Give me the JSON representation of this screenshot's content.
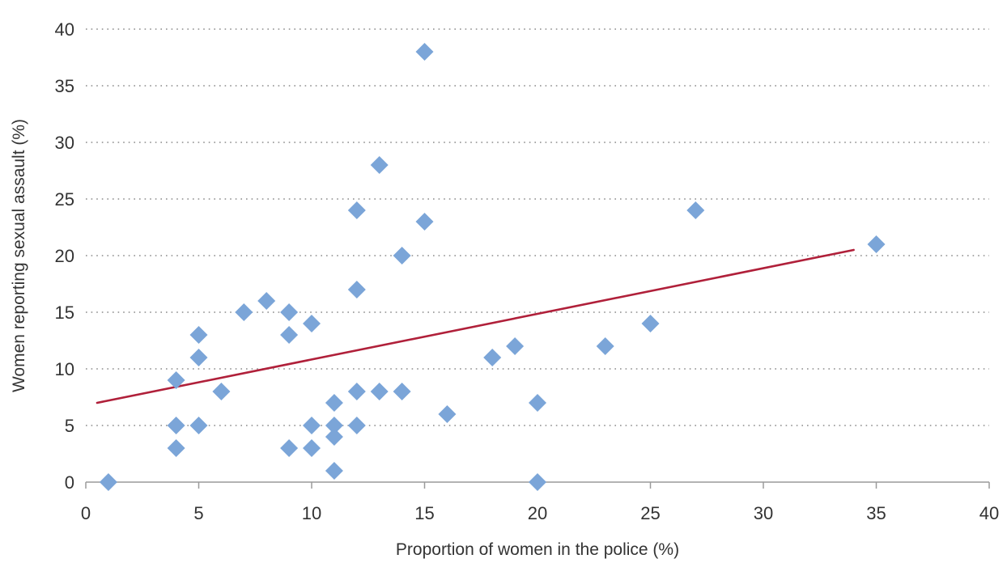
{
  "chart_data": {
    "type": "scatter",
    "title": "",
    "xlabel": "Proportion of women in the police (%)",
    "ylabel": "Women reporting sexual assault (%)",
    "xlim": [
      0,
      40
    ],
    "ylim": [
      0,
      40
    ],
    "x_ticks": [
      0,
      5,
      10,
      15,
      20,
      25,
      30,
      35,
      40
    ],
    "y_ticks": [
      0,
      5,
      10,
      15,
      20,
      25,
      30,
      35,
      40
    ],
    "grid": {
      "horizontal": true,
      "style": "dotted"
    },
    "series": [
      {
        "marker": "diamond",
        "color": "#7BA5D8",
        "points": [
          {
            "x": 1,
            "y": 0
          },
          {
            "x": 4,
            "y": 9
          },
          {
            "x": 4,
            "y": 5
          },
          {
            "x": 4,
            "y": 3
          },
          {
            "x": 5,
            "y": 13
          },
          {
            "x": 5,
            "y": 11
          },
          {
            "x": 5,
            "y": 5
          },
          {
            "x": 6,
            "y": 8
          },
          {
            "x": 7,
            "y": 15
          },
          {
            "x": 8,
            "y": 16
          },
          {
            "x": 9,
            "y": 15
          },
          {
            "x": 9,
            "y": 13
          },
          {
            "x": 9,
            "y": 3
          },
          {
            "x": 10,
            "y": 14
          },
          {
            "x": 10,
            "y": 5
          },
          {
            "x": 10,
            "y": 3
          },
          {
            "x": 11,
            "y": 7
          },
          {
            "x": 11,
            "y": 5
          },
          {
            "x": 11,
            "y": 4
          },
          {
            "x": 11,
            "y": 1
          },
          {
            "x": 12,
            "y": 24
          },
          {
            "x": 12,
            "y": 17
          },
          {
            "x": 12,
            "y": 8
          },
          {
            "x": 12,
            "y": 5
          },
          {
            "x": 13,
            "y": 28
          },
          {
            "x": 13,
            "y": 8
          },
          {
            "x": 14,
            "y": 20
          },
          {
            "x": 14,
            "y": 8
          },
          {
            "x": 15,
            "y": 38
          },
          {
            "x": 15,
            "y": 23
          },
          {
            "x": 16,
            "y": 6
          },
          {
            "x": 18,
            "y": 11
          },
          {
            "x": 19,
            "y": 12
          },
          {
            "x": 20,
            "y": 7
          },
          {
            "x": 20,
            "y": 0
          },
          {
            "x": 23,
            "y": 12
          },
          {
            "x": 25,
            "y": 14
          },
          {
            "x": 27,
            "y": 24
          },
          {
            "x": 35,
            "y": 21
          }
        ]
      }
    ],
    "trendline": {
      "type": "linear",
      "color": "#B0203A",
      "x": [
        0.5,
        34
      ],
      "y": [
        7,
        20.5
      ]
    }
  }
}
